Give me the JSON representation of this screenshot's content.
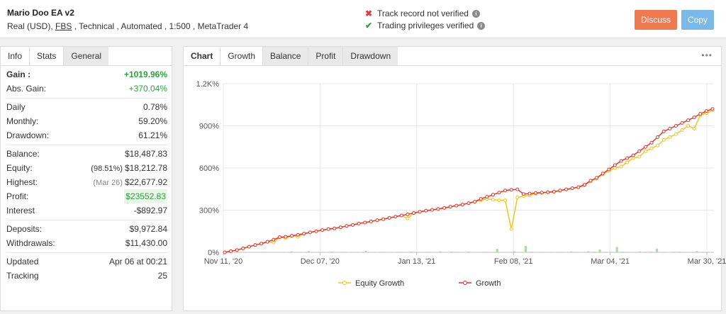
{
  "header": {
    "title": "Mario Doo EA v2",
    "sub_prefix": "Real (USD), ",
    "broker": "FBS",
    "sub_suffix": " , Technical , Automated , 1:500 , MetaTrader 4",
    "track_record": "Track record not verified",
    "trading_privileges": "Trading privileges verified",
    "discuss_label": "Discuss",
    "copy_label": "Copy",
    "colors": {
      "discuss": "#f07a50",
      "copy": "#7ab8e8",
      "x_mark": "#e03b3b",
      "check_mark": "#27a33a"
    }
  },
  "left_tabs": {
    "info": "Info",
    "stats": "Stats",
    "general": "General"
  },
  "stats": {
    "gain_label": "Gain :",
    "gain_value": "+1019.96%",
    "abs_gain_label": "Abs. Gain:",
    "abs_gain_value": "+370.04%",
    "daily_label": "Daily",
    "daily_value": "0.78%",
    "monthly_label": "Monthly:",
    "monthly_value": "59.20%",
    "drawdown_label": "Drawdown:",
    "drawdown_value": "61.21%",
    "balance_label": "Balance:",
    "balance_value": "$18,487.83",
    "equity_label": "Equity:",
    "equity_pct": "(98.51%)",
    "equity_value": "$18,212.78",
    "highest_label": "Highest:",
    "highest_date": "(Mar 26)",
    "highest_value": "$22,677.92",
    "profit_label": "Profit:",
    "profit_value": "$23552.83",
    "interest_label": "Interest",
    "interest_value": "-$892.97",
    "deposits_label": "Deposits:",
    "deposits_value": "$9,972.84",
    "withdrawals_label": "Withdrawals:",
    "withdrawals_value": "$11,430.00",
    "updated_label": "Updated",
    "updated_value": "Apr 06 at 00:21",
    "tracking_label": "Tracking",
    "tracking_value": "25"
  },
  "right_tabs": {
    "chart": "Chart",
    "growth": "Growth",
    "balance": "Balance",
    "profit": "Profit",
    "drawdown": "Drawdown",
    "more": "•••"
  },
  "chart_data": {
    "type": "line",
    "x_labels": [
      "Nov 11, '20",
      "Dec 07, '20",
      "Jan 13, '21",
      "Feb 08, '21",
      "Mar 04, '21",
      "Mar 30, '21"
    ],
    "y_labels": [
      "0%",
      "300%",
      "600%",
      "900%",
      "1.2K%"
    ],
    "ylim": [
      0,
      1200
    ],
    "legend": [
      "Equity Growth",
      "Growth"
    ],
    "legend_position": "bottom",
    "colors": {
      "equity": "#f5c518",
      "growth": "#e8322c",
      "bars": "#a8dca8",
      "grid": "#e8e8e8"
    },
    "series": [
      {
        "name": "Growth",
        "values": [
          0,
          8,
          16,
          28,
          40,
          52,
          62,
          75,
          90,
          108,
          110,
          118,
          125,
          133,
          142,
          150,
          158,
          165,
          170,
          178,
          188,
          195,
          205,
          212,
          220,
          228,
          236,
          245,
          254,
          262,
          270,
          280,
          288,
          296,
          302,
          308,
          316,
          324,
          332,
          340,
          350,
          360,
          380,
          395,
          410,
          425,
          440,
          445,
          448,
          415,
          418,
          422,
          425,
          428,
          432,
          440,
          448,
          456,
          464,
          480,
          510,
          530,
          560,
          590,
          620,
          650,
          670,
          690,
          720,
          750,
          780,
          820,
          860,
          880,
          900,
          920,
          940,
          960,
          985,
          1005,
          1020
        ]
      },
      {
        "name": "Equity Growth",
        "values": [
          0,
          8,
          16,
          28,
          40,
          52,
          62,
          75,
          70,
          108,
          100,
          118,
          110,
          133,
          142,
          150,
          158,
          165,
          170,
          178,
          188,
          195,
          205,
          212,
          220,
          228,
          236,
          245,
          254,
          262,
          240,
          280,
          288,
          296,
          302,
          308,
          316,
          324,
          332,
          340,
          350,
          360,
          370,
          380,
          375,
          370,
          370,
          165,
          390,
          400,
          405,
          418,
          422,
          426,
          430,
          438,
          446,
          455,
          462,
          478,
          505,
          525,
          555,
          580,
          600,
          610,
          640,
          670,
          680,
          720,
          740,
          760,
          800,
          820,
          840,
          870,
          900,
          880,
          975,
          990,
          1010
        ]
      }
    ],
    "bars": [
      2,
      1,
      1,
      2,
      3,
      1,
      4,
      2,
      1,
      3,
      2,
      6,
      3,
      2,
      9,
      2,
      3,
      2,
      5,
      1,
      4,
      2,
      3,
      2,
      11,
      3,
      2,
      4,
      1,
      2,
      4,
      3,
      5,
      2,
      3,
      4,
      2,
      6,
      3,
      5,
      4,
      3,
      5,
      2,
      3,
      4,
      3,
      25,
      3,
      2,
      8,
      3,
      46,
      5,
      2,
      4,
      3,
      2,
      4,
      2,
      6,
      4,
      3,
      8,
      5,
      20,
      4,
      3,
      38,
      5,
      4,
      3,
      6,
      4,
      5,
      26,
      3,
      2,
      4,
      5,
      3,
      3,
      9,
      4,
      3
    ]
  },
  "legend_equity": "Equity Growth",
  "legend_growth": "Growth"
}
